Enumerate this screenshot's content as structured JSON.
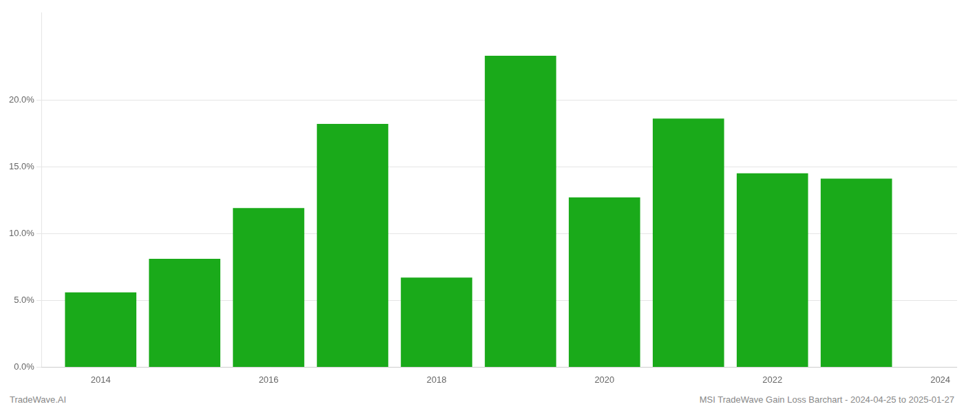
{
  "chart_data": {
    "type": "bar",
    "x": [
      2014,
      2015,
      2016,
      2017,
      2018,
      2019,
      2020,
      2021,
      2022,
      2023
    ],
    "values": [
      0.056,
      0.081,
      0.119,
      0.182,
      0.067,
      0.233,
      0.127,
      0.186,
      0.145,
      0.141
    ],
    "color": "#1aaa1a",
    "xlim": [
      2013.3,
      2024.2
    ],
    "xticks": [
      2014,
      2016,
      2018,
      2020,
      2022,
      2024
    ],
    "ylim": [
      0,
      0.265
    ],
    "yticks": [
      {
        "value": 0.0,
        "label": "0.0%"
      },
      {
        "value": 0.05,
        "label": "5.0%"
      },
      {
        "value": 0.1,
        "label": "10.0%"
      },
      {
        "value": 0.15,
        "label": "15.0%"
      },
      {
        "value": 0.2,
        "label": "20.0%"
      }
    ],
    "grid": true,
    "annotations": [
      "TradeWave.AI",
      "MSI TradeWave Gain Loss Barchart - 2024-04-25 to 2025-01-27"
    ]
  }
}
